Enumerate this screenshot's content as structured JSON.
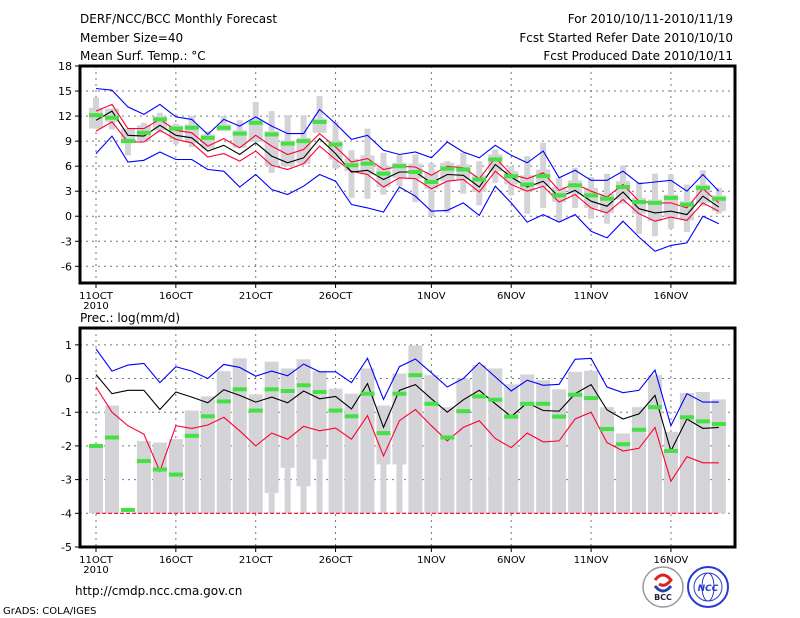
{
  "header": {
    "title": "DERF/NCC/BCC Monthly Forecast",
    "member_size": "Member Size=40",
    "variable": "Mean Surf. Temp.: °C",
    "period": "For 2010/10/11-2010/11/19",
    "started": "Fcst Started Refer Date 2010/10/10",
    "produced": "Fcst Produced Date 2010/10/11"
  },
  "footer": {
    "url": "http://cmdp.ncc.cma.gov.cn",
    "credit": "GrADS: COLA/IGES",
    "logo_bcc": "BCC",
    "logo_ncc": "NCC"
  },
  "colors": {
    "blue": "#0000ff",
    "red": "#ff0030",
    "black": "#000000",
    "green": "#44e044",
    "box": "#d4d4d8"
  },
  "chart_data": [
    {
      "type": "line",
      "title": "Mean Surf. Temp.: °C",
      "ylim": [
        -8,
        18
      ],
      "yticks": [
        18,
        15,
        12,
        9,
        6,
        3,
        0,
        -3,
        -6
      ],
      "ytick_labels": [
        "18",
        "15",
        "12",
        "9",
        "6",
        "3",
        "0",
        "-3",
        "-6"
      ],
      "xticks": [
        {
          "index": 0,
          "label": "11OCT",
          "sub": "2010"
        },
        {
          "index": 5,
          "label": "16OCT"
        },
        {
          "index": 10,
          "label": "21OCT"
        },
        {
          "index": 15,
          "label": "26OCT"
        },
        {
          "index": 21,
          "label": "1NOV"
        },
        {
          "index": 26,
          "label": "6NOV"
        },
        {
          "index": 31,
          "label": "11NOV"
        },
        {
          "index": 36,
          "label": "16NOV"
        }
      ],
      "grid": true,
      "days": 40,
      "series": [
        {
          "name": "max",
          "color": "blue",
          "values": [
            15.3,
            15.1,
            13.1,
            12.2,
            13.4,
            11.9,
            11.6,
            9.8,
            11.6,
            10.8,
            11.9,
            10.8,
            9.9,
            9.9,
            12.8,
            11.1,
            9.2,
            9.7,
            7.9,
            7.4,
            7.7,
            7.0,
            8.9,
            7.7,
            7.0,
            8.5,
            7.3,
            6.4,
            7.8,
            4.6,
            5.5,
            4.3,
            4.3,
            5.4,
            3.9,
            4.1,
            4.3,
            3.0,
            5.0,
            3.0
          ]
        },
        {
          "name": "min",
          "color": "blue",
          "values": [
            7.5,
            9.6,
            6.5,
            6.7,
            7.7,
            6.8,
            6.8,
            5.6,
            5.4,
            3.5,
            5.0,
            3.2,
            2.6,
            3.6,
            5.0,
            4.2,
            1.4,
            1.0,
            0.5,
            3.5,
            2.4,
            0.6,
            0.7,
            1.6,
            0.1,
            3.6,
            1.6,
            -0.7,
            0.2,
            -0.7,
            0.2,
            -1.8,
            -2.6,
            -0.6,
            -2.5,
            -4.2,
            -3.5,
            -3.2,
            0.0,
            -0.9
          ]
        },
        {
          "name": "upper",
          "color": "red",
          "values": [
            12.6,
            13.4,
            10.5,
            10.5,
            11.6,
            10.3,
            10.0,
            8.4,
            9.3,
            8.2,
            9.7,
            8.4,
            7.4,
            8.0,
            9.9,
            8.3,
            6.5,
            6.9,
            5.6,
            6.0,
            5.9,
            4.9,
            6.0,
            5.8,
            4.5,
            7.0,
            5.0,
            4.5,
            5.2,
            3.1,
            3.9,
            3.0,
            2.3,
            3.8,
            1.8,
            1.6,
            1.6,
            1.0,
            3.3,
            1.6
          ]
        },
        {
          "name": "lower",
          "color": "red",
          "values": [
            10.2,
            11.3,
            8.9,
            8.9,
            10.3,
            9.2,
            8.8,
            7.1,
            7.5,
            6.6,
            7.8,
            6.1,
            5.6,
            6.3,
            8.4,
            6.8,
            5.4,
            5.0,
            3.5,
            4.6,
            4.5,
            3.3,
            4.2,
            4.4,
            2.9,
            5.4,
            3.8,
            3.0,
            3.6,
            1.7,
            2.6,
            1.0,
            0.4,
            2.0,
            0.3,
            -0.6,
            -0.1,
            -0.5,
            1.6,
            0.6
          ]
        },
        {
          "name": "mean",
          "color": "black",
          "values": [
            11.5,
            12.6,
            9.7,
            9.6,
            10.9,
            9.7,
            9.4,
            7.8,
            8.5,
            7.4,
            8.8,
            7.2,
            6.4,
            7.0,
            9.3,
            7.5,
            5.3,
            5.5,
            4.4,
            5.3,
            5.3,
            4.0,
            5.0,
            4.9,
            3.5,
            6.2,
            4.7,
            3.5,
            4.2,
            2.3,
            3.1,
            1.8,
            1.2,
            2.9,
            0.9,
            0.4,
            0.6,
            0.2,
            2.4,
            1.1
          ]
        }
      ],
      "markers": {
        "name": "observed",
        "color": "green",
        "values": [
          12.1,
          11.8,
          9.0,
          10.0,
          11.6,
          10.5,
          10.6,
          9.4,
          10.6,
          9.9,
          11.2,
          9.8,
          8.7,
          9.0,
          11.3,
          8.6,
          6.1,
          6.3,
          5.1,
          6.0,
          5.3,
          4.1,
          5.7,
          5.6,
          4.4,
          6.8,
          4.8,
          3.8,
          4.8,
          2.5,
          3.7,
          2.5,
          2.1,
          3.5,
          1.7,
          1.6,
          2.2,
          1.4,
          3.4,
          2.1
        ]
      },
      "boxes": {
        "min": [
          10.5,
          10.4,
          7.3,
          9.0,
          10.0,
          8.6,
          8.3,
          8.1,
          10.2,
          8.2,
          8.9,
          5.2,
          6.0,
          6.2,
          10.0,
          5.7,
          2.2,
          2.1,
          2.6,
          3.6,
          1.7,
          0.0,
          0.4,
          2.7,
          1.3,
          4.0,
          2.5,
          0.3,
          1.0,
          -0.6,
          1.0,
          -0.3,
          -0.9,
          1.5,
          -2.1,
          -2.4,
          -1.5,
          -1.9,
          1.2,
          0.3
        ],
        "max": [
          14.2,
          12.9,
          10.5,
          11.2,
          12.4,
          11.1,
          12.0,
          10.2,
          12.0,
          11.5,
          13.7,
          12.6,
          12.1,
          12.1,
          14.4,
          11.3,
          7.9,
          10.5,
          7.6,
          7.3,
          7.4,
          6.4,
          6.6,
          7.6,
          6.6,
          8.0,
          6.0,
          7.2,
          8.8,
          4.6,
          5.8,
          4.7,
          5.1,
          6.1,
          4.1,
          5.1,
          5.0,
          3.8,
          5.5,
          3.4
        ]
      }
    },
    {
      "type": "line",
      "title": "Prec.: log(mm/d)",
      "ylim": [
        -5,
        1.5
      ],
      "yticks": [
        1,
        0,
        -1,
        -2,
        -3,
        -4,
        -5
      ],
      "ytick_labels": [
        "1",
        "0",
        "-1",
        "-2",
        "-3",
        "-4",
        "-5"
      ],
      "xticks": [
        {
          "index": 0,
          "label": "11OCT",
          "sub": "2010"
        },
        {
          "index": 5,
          "label": "16OCT"
        },
        {
          "index": 10,
          "label": "21OCT"
        },
        {
          "index": 15,
          "label": "26OCT"
        },
        {
          "index": 21,
          "label": "1NOV"
        },
        {
          "index": 26,
          "label": "6NOV"
        },
        {
          "index": 31,
          "label": "11NOV"
        },
        {
          "index": 36,
          "label": "16NOV"
        }
      ],
      "grid": true,
      "days": 40,
      "series": [
        {
          "name": "max",
          "color": "blue",
          "values": [
            0.88,
            0.22,
            0.4,
            0.45,
            -0.12,
            0.35,
            0.22,
            0.0,
            0.42,
            0.33,
            0.07,
            0.22,
            0.08,
            0.43,
            0.2,
            0.2,
            -0.12,
            0.6,
            -0.62,
            0.35,
            0.58,
            0.17,
            -0.25,
            0.0,
            0.47,
            0.05,
            -0.37,
            -0.05,
            -0.2,
            -0.17,
            0.57,
            0.6,
            -0.25,
            -0.42,
            -0.35,
            0.25,
            -1.4,
            -0.45,
            -0.7,
            -0.7
          ]
        },
        {
          "name": "mean",
          "color": "black",
          "values": [
            0.12,
            -0.45,
            -0.35,
            -0.35,
            -0.92,
            -0.4,
            -0.55,
            -0.72,
            -0.33,
            -0.5,
            -0.7,
            -0.55,
            -0.72,
            -0.37,
            -0.6,
            -0.53,
            -0.9,
            -0.15,
            -1.45,
            -0.35,
            -0.18,
            -0.6,
            -1.0,
            -0.63,
            -0.35,
            -0.75,
            -1.13,
            -0.72,
            -0.95,
            -0.97,
            -0.45,
            -0.18,
            -0.93,
            -1.2,
            -1.05,
            -0.5,
            -2.15,
            -1.2,
            -1.48,
            -1.45
          ]
        },
        {
          "name": "lower",
          "color": "red",
          "values": [
            -0.25,
            -1.0,
            -1.4,
            -1.65,
            -2.75,
            -1.4,
            -1.48,
            -1.38,
            -1.15,
            -1.55,
            -2.0,
            -1.62,
            -1.8,
            -1.42,
            -1.55,
            -1.47,
            -1.8,
            -1.1,
            -2.3,
            -1.25,
            -0.92,
            -1.4,
            -1.85,
            -1.45,
            -1.25,
            -1.78,
            -2.05,
            -1.62,
            -1.88,
            -1.85,
            -1.2,
            -1.0,
            -1.9,
            -2.15,
            -2.07,
            -1.45,
            -3.05,
            -2.32,
            -2.5,
            -2.5
          ]
        },
        {
          "name": "min",
          "color": "red",
          "dashed": true,
          "values": [
            -4,
            -4,
            -4,
            -4,
            -4,
            -4,
            -4,
            -4,
            -4,
            -4,
            -4,
            -4,
            -4,
            -4,
            -4,
            -4,
            -4,
            -4,
            -4,
            -4,
            -4,
            -4,
            -4,
            -4,
            -4,
            -4,
            -4,
            -4,
            -4,
            -4,
            -4,
            -4,
            -4,
            -4,
            -4,
            -4,
            -4,
            -4,
            -4,
            -4
          ]
        }
      ],
      "markers": {
        "name": "observed",
        "color": "green",
        "values": [
          -2.0,
          -1.75,
          -3.9,
          -2.45,
          -2.7,
          -2.85,
          -1.7,
          -1.12,
          -0.68,
          -0.32,
          -0.95,
          -0.32,
          -0.37,
          -0.2,
          -0.4,
          -0.95,
          -1.12,
          -0.45,
          -1.62,
          -0.45,
          0.1,
          -0.75,
          -1.75,
          -0.97,
          -0.53,
          -0.63,
          -1.13,
          -0.75,
          -0.75,
          -1.13,
          -0.48,
          -0.58,
          -1.5,
          -1.95,
          -1.52,
          -0.85,
          -2.15,
          -1.15,
          -1.27,
          -1.35
        ]
      },
      "bars": {
        "base": -4,
        "top": [
          -2.0,
          -0.8,
          -4,
          -1.85,
          -1.9,
          -1.8,
          -0.95,
          -0.53,
          0.22,
          0.6,
          -0.47,
          0.5,
          0.3,
          0.57,
          0.22,
          -0.3,
          -0.45,
          0.3,
          -0.8,
          0.15,
          0.98,
          0.1,
          -0.85,
          0.0,
          0.4,
          0.3,
          -0.17,
          0.12,
          -0.05,
          -0.32,
          0.2,
          0.23,
          -0.85,
          -1.63,
          -0.85,
          0.1,
          -1.58,
          -0.43,
          -0.4,
          -0.62
        ],
        "wide_bottom": [
          null,
          null,
          null,
          null,
          null,
          null,
          null,
          null,
          null,
          null,
          null,
          -3.4,
          -2.65,
          -3.2,
          -2.4,
          null,
          null,
          null,
          -2.55,
          -2.55,
          null,
          null,
          null,
          null,
          null,
          null,
          null,
          null,
          null,
          null,
          null,
          null,
          null,
          null,
          null,
          null,
          null,
          null,
          null,
          null
        ]
      }
    }
  ]
}
